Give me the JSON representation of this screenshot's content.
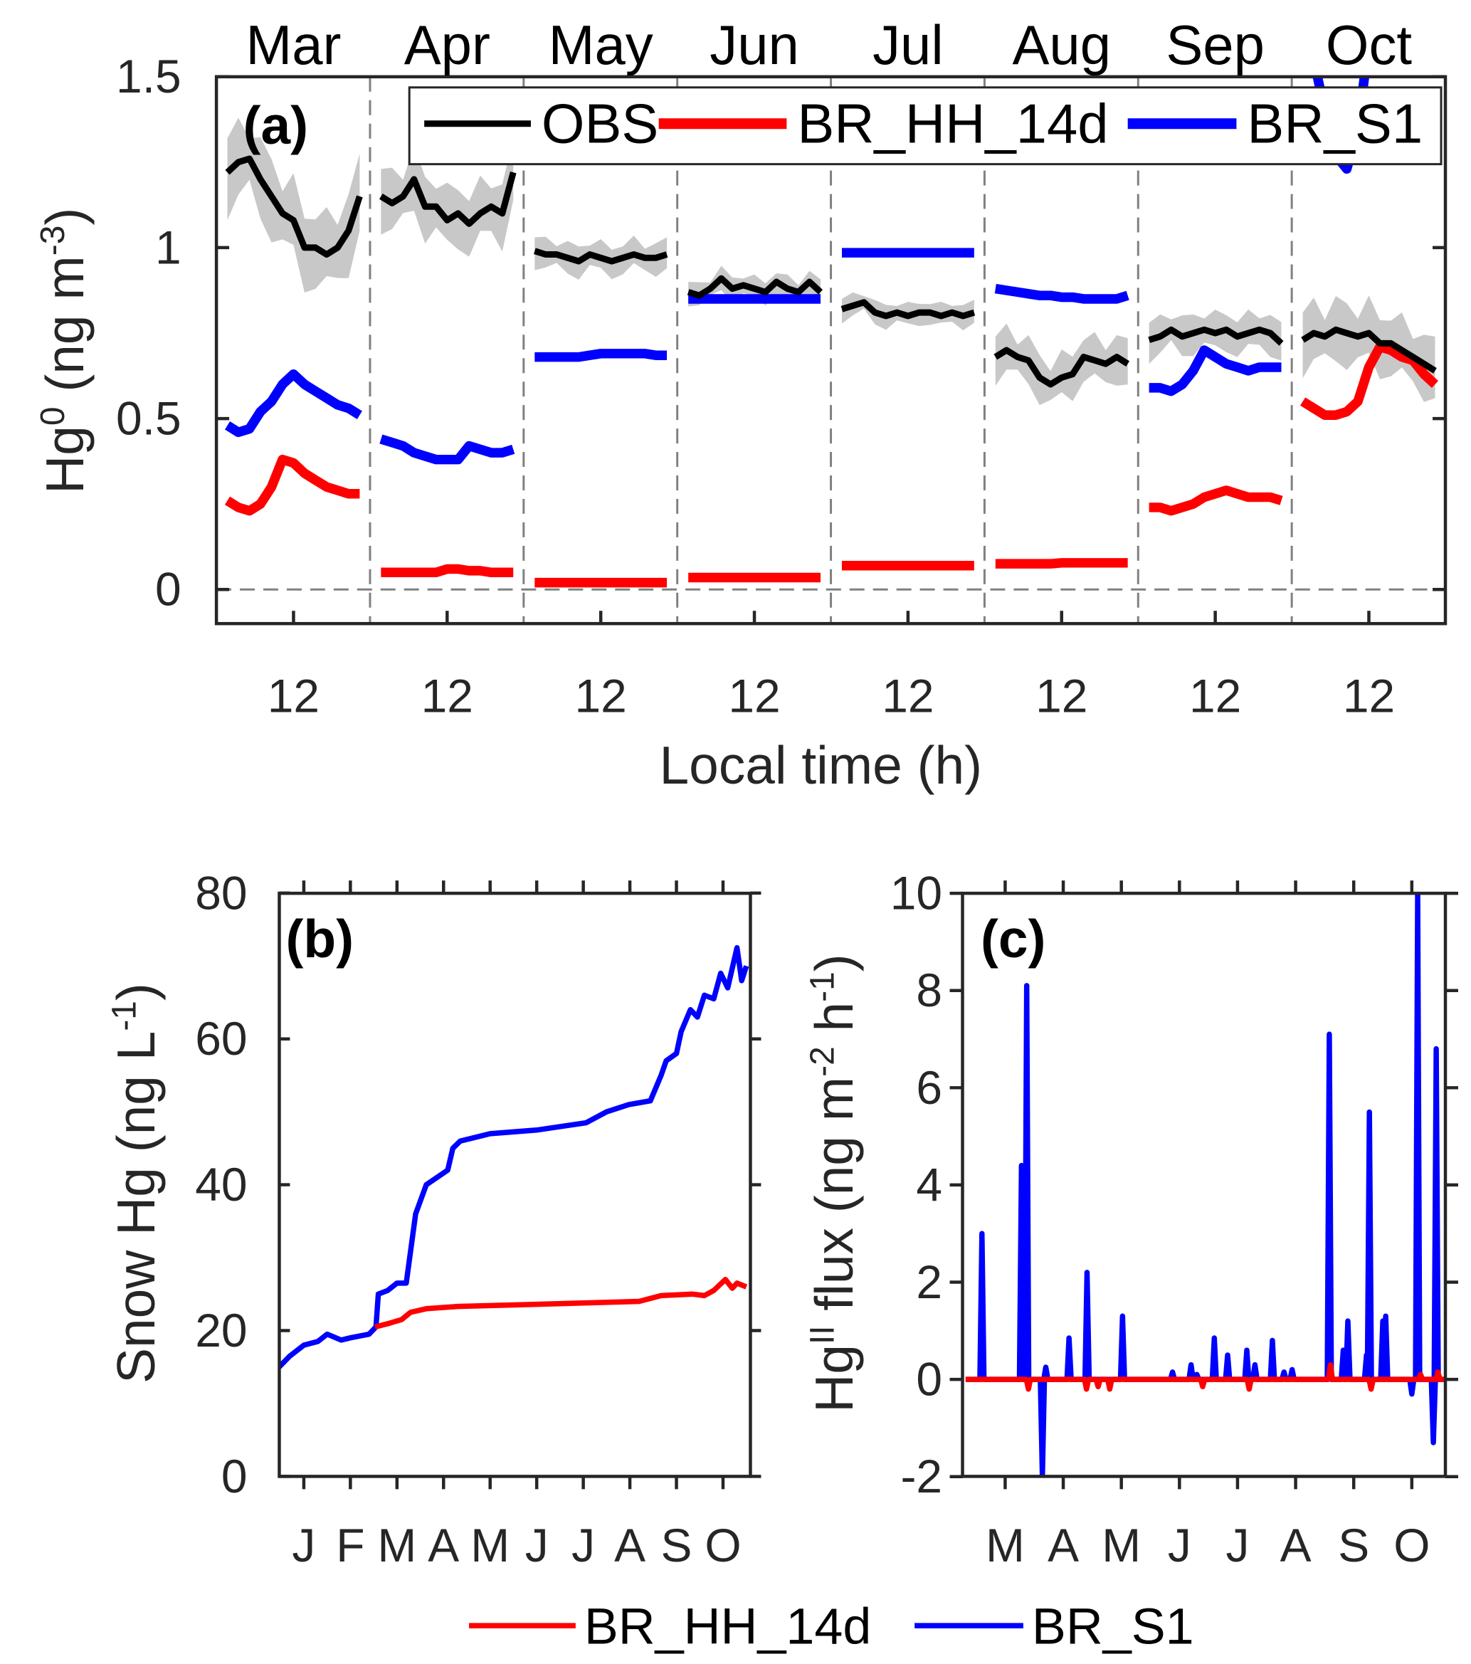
{
  "colors": {
    "OBS": "#000000",
    "BR_HH_14d": "#ff0000",
    "BR_S1": "#0000ff",
    "band": "#c8c8c8",
    "axis": "#262626"
  },
  "chart_data": [
    {
      "panel": "(a)",
      "type": "line",
      "month_labels": [
        "Mar",
        "Apr",
        "May",
        "Jun",
        "Jul",
        "Aug",
        "Sep",
        "Oct"
      ],
      "xtick_label": "12",
      "xlabel": "Local time (h)",
      "ylabel_parts": [
        {
          "t": "Hg"
        },
        {
          "t": "0",
          "sup": true
        },
        {
          "t": " (ng m"
        },
        {
          "t": "-3",
          "sup": true
        },
        {
          "t": ")"
        }
      ],
      "ylim": [
        -0.1,
        1.5
      ],
      "yticks": [
        "0",
        "0.5",
        "1",
        "1.5"
      ],
      "hours": [
        0,
        2,
        4,
        6,
        8,
        10,
        12,
        14,
        16,
        18,
        20,
        22,
        24
      ],
      "legend": [
        "OBS",
        "BR_HH_14d",
        "BR_S1"
      ],
      "legend_position": "top",
      "series": {
        "OBS": [
          [
            1.22,
            1.25,
            1.26,
            1.2,
            1.15,
            1.1,
            1.08,
            1.0,
            1.0,
            0.98,
            1.0,
            1.05,
            1.15
          ],
          [
            1.15,
            1.13,
            1.15,
            1.2,
            1.12,
            1.12,
            1.08,
            1.1,
            1.07,
            1.1,
            1.12,
            1.1,
            1.22
          ],
          [
            0.99,
            0.98,
            0.98,
            0.97,
            0.96,
            0.98,
            0.97,
            0.96,
            0.97,
            0.98,
            0.97,
            0.97,
            0.98
          ],
          [
            0.87,
            0.86,
            0.88,
            0.91,
            0.88,
            0.89,
            0.88,
            0.87,
            0.9,
            0.88,
            0.87,
            0.9,
            0.87
          ],
          [
            0.82,
            0.83,
            0.84,
            0.81,
            0.8,
            0.81,
            0.8,
            0.81,
            0.81,
            0.8,
            0.81,
            0.8,
            0.81
          ],
          [
            0.68,
            0.7,
            0.68,
            0.67,
            0.62,
            0.6,
            0.62,
            0.63,
            0.68,
            0.67,
            0.66,
            0.68,
            0.66
          ],
          [
            0.73,
            0.74,
            0.76,
            0.74,
            0.75,
            0.76,
            0.75,
            0.76,
            0.74,
            0.75,
            0.76,
            0.75,
            0.72
          ],
          [
            0.73,
            0.75,
            0.74,
            0.76,
            0.75,
            0.74,
            0.75,
            0.72,
            0.72,
            0.7,
            0.68,
            0.66,
            0.64
          ]
        ],
        "OBS_band_halfwidth": [
          0.1,
          0.08,
          0.04,
          0.03,
          0.03,
          0.06,
          0.05,
          0.08
        ],
        "BR_HH_14d": [
          [
            0.26,
            0.24,
            0.23,
            0.25,
            0.3,
            0.38,
            0.37,
            0.34,
            0.32,
            0.3,
            0.29,
            0.28,
            0.28
          ],
          [
            0.05,
            0.05,
            0.05,
            0.05,
            0.05,
            0.05,
            0.06,
            0.06,
            0.055,
            0.055,
            0.05,
            0.05,
            0.05
          ],
          [
            0.02,
            0.02,
            0.02,
            0.02,
            0.02,
            0.02,
            0.02,
            0.02,
            0.02,
            0.02,
            0.02,
            0.02,
            0.02
          ],
          [
            0.035,
            0.035,
            0.035,
            0.035,
            0.035,
            0.035,
            0.035,
            0.035,
            0.035,
            0.035,
            0.035,
            0.035,
            0.035
          ],
          [
            0.07,
            0.07,
            0.07,
            0.07,
            0.07,
            0.07,
            0.07,
            0.07,
            0.07,
            0.07,
            0.07,
            0.07,
            0.07
          ],
          [
            0.075,
            0.075,
            0.075,
            0.075,
            0.075,
            0.075,
            0.078,
            0.078,
            0.078,
            0.078,
            0.078,
            0.078,
            0.078
          ],
          [
            0.24,
            0.24,
            0.23,
            0.24,
            0.25,
            0.27,
            0.28,
            0.29,
            0.28,
            0.27,
            0.27,
            0.27,
            0.26
          ],
          [
            0.55,
            0.53,
            0.51,
            0.51,
            0.52,
            0.55,
            0.65,
            0.71,
            0.7,
            0.68,
            0.67,
            0.63,
            0.6
          ]
        ],
        "BR_S1": [
          [
            0.48,
            0.46,
            0.47,
            0.52,
            0.55,
            0.6,
            0.63,
            0.6,
            0.58,
            0.56,
            0.54,
            0.53,
            0.51
          ],
          [
            0.44,
            0.43,
            0.42,
            0.4,
            0.39,
            0.38,
            0.38,
            0.38,
            0.42,
            0.41,
            0.4,
            0.4,
            0.41
          ],
          [
            0.68,
            0.68,
            0.68,
            0.68,
            0.68,
            0.685,
            0.69,
            0.69,
            0.69,
            0.69,
            0.69,
            0.685,
            0.685
          ],
          [
            0.85,
            0.85,
            0.85,
            0.85,
            0.85,
            0.85,
            0.85,
            0.85,
            0.85,
            0.85,
            0.85,
            0.85,
            0.85
          ],
          [
            0.985,
            0.985,
            0.985,
            0.985,
            0.985,
            0.985,
            0.985,
            0.985,
            0.985,
            0.985,
            0.985,
            0.985,
            0.985
          ],
          [
            0.88,
            0.875,
            0.87,
            0.865,
            0.86,
            0.86,
            0.855,
            0.855,
            0.85,
            0.85,
            0.85,
            0.85,
            0.86
          ],
          [
            0.59,
            0.59,
            0.58,
            0.6,
            0.64,
            0.7,
            0.68,
            0.66,
            0.65,
            0.64,
            0.65,
            0.65,
            0.65
          ],
          [
            1.6,
            1.55,
            1.4,
            1.27,
            1.23,
            1.35,
            1.6,
            1.7,
            1.7,
            1.7,
            1.7,
            1.6,
            1.5
          ]
        ]
      }
    },
    {
      "panel": "(b)",
      "type": "line",
      "ylabel_parts": [
        {
          "t": "Snow Hg (ng L"
        },
        {
          "t": "-1",
          "sup": true
        },
        {
          "t": ")"
        }
      ],
      "ylim": [
        0,
        80
      ],
      "yticks": [
        "0",
        "20",
        "40",
        "60",
        "80"
      ],
      "xticks": [
        "J",
        "F",
        "M",
        "A",
        "M",
        "J",
        "J",
        "A",
        "S",
        "O"
      ],
      "xlim_month_index": [
        0.47,
        10.6
      ],
      "series": [
        {
          "name": "BR_S1",
          "points": [
            [
              0.47,
              15
            ],
            [
              0.7,
              16.5
            ],
            [
              1.0,
              18
            ],
            [
              1.3,
              18.5
            ],
            [
              1.5,
              19.5
            ],
            [
              1.8,
              18.7
            ],
            [
              2.0,
              19
            ],
            [
              2.4,
              19.5
            ],
            [
              2.55,
              20.5
            ],
            [
              2.6,
              25
            ],
            [
              2.8,
              25.5
            ],
            [
              3.0,
              26.5
            ],
            [
              3.2,
              26.5
            ],
            [
              3.4,
              36
            ],
            [
              3.63,
              40
            ],
            [
              4.09,
              42
            ],
            [
              4.2,
              45
            ],
            [
              4.36,
              46
            ],
            [
              5.0,
              47
            ],
            [
              6.0,
              47.5
            ],
            [
              7.06,
              48.5
            ],
            [
              7.5,
              50
            ],
            [
              7.98,
              51
            ],
            [
              8.44,
              51.5
            ],
            [
              8.67,
              55
            ],
            [
              8.78,
              57
            ],
            [
              9.0,
              58
            ],
            [
              9.1,
              61
            ],
            [
              9.3,
              64
            ],
            [
              9.45,
              63
            ],
            [
              9.6,
              66
            ],
            [
              9.8,
              65.5
            ],
            [
              9.95,
              69
            ],
            [
              10.1,
              67
            ],
            [
              10.3,
              72.5
            ],
            [
              10.4,
              68
            ],
            [
              10.5,
              70
            ]
          ]
        },
        {
          "name": "BR_HH_14d",
          "points": [
            [
              2.53,
              20.5
            ],
            [
              2.83,
              21
            ],
            [
              3.1,
              21.5
            ],
            [
              3.29,
              22.5
            ],
            [
              3.63,
              23
            ],
            [
              4.3,
              23.3
            ],
            [
              6.0,
              23.6
            ],
            [
              8.2,
              24
            ],
            [
              8.67,
              24.8
            ],
            [
              9.35,
              25
            ],
            [
              9.6,
              24.8
            ],
            [
              9.8,
              25.5
            ],
            [
              10.05,
              27
            ],
            [
              10.2,
              25.8
            ],
            [
              10.3,
              26.5
            ],
            [
              10.5,
              26
            ]
          ]
        }
      ]
    },
    {
      "panel": "(c)",
      "type": "line",
      "ylabel_parts": [
        {
          "t": "Hg"
        },
        {
          "t": "II",
          "sup": true
        },
        {
          "t": " flux (ng m"
        },
        {
          "t": "-2",
          "sup": true
        },
        {
          "t": " h"
        },
        {
          "t": "-1",
          "sup": true
        },
        {
          "t": ")"
        }
      ],
      "ylim": [
        -2,
        10
      ],
      "yticks": [
        "-2",
        "0",
        "2",
        "4",
        "6",
        "8",
        "10"
      ],
      "xticks": [
        "M",
        "A",
        "M",
        "J",
        "J",
        "A",
        "S",
        "O"
      ],
      "xlim_month_index": [
        2.27,
        10.58
      ],
      "series": [
        {
          "name": "BR_S1",
          "spikes": [
            [
              2.6,
              3.0
            ],
            [
              3.28,
              4.4
            ],
            [
              3.37,
              8.1
            ],
            [
              3.64,
              -2
            ],
            [
              3.7,
              0.25
            ],
            [
              4.1,
              0.85
            ],
            [
              4.41,
              2.2
            ],
            [
              5.02,
              1.3
            ],
            [
              5.88,
              0.15
            ],
            [
              6.2,
              0.3
            ],
            [
              6.3,
              0.1
            ],
            [
              6.6,
              0.85
            ],
            [
              6.83,
              0.5
            ],
            [
              7.16,
              0.6
            ],
            [
              7.3,
              0.3
            ],
            [
              7.6,
              0.8
            ],
            [
              7.8,
              0.15
            ],
            [
              7.94,
              0.2
            ],
            [
              8.58,
              7.1
            ],
            [
              8.82,
              0.6
            ],
            [
              8.9,
              1.2
            ],
            [
              9.22,
              0.5
            ],
            [
              9.27,
              5.5
            ],
            [
              9.5,
              1.2
            ],
            [
              9.55,
              1.3
            ],
            [
              10.0,
              -0.3
            ],
            [
              10.1,
              10
            ],
            [
              10.37,
              -1.3
            ],
            [
              10.42,
              6.8
            ]
          ]
        },
        {
          "name": "BR_HH_14d",
          "spikes": [
            [
              3.4,
              -0.2
            ],
            [
              4.4,
              -0.2
            ],
            [
              4.6,
              -0.15
            ],
            [
              4.8,
              -0.2
            ],
            [
              6.4,
              -0.15
            ],
            [
              7.2,
              -0.2
            ],
            [
              8.6,
              0.3
            ],
            [
              9.3,
              -0.2
            ],
            [
              10.15,
              0.1
            ],
            [
              10.45,
              0.15
            ]
          ]
        }
      ]
    }
  ],
  "bottom_legend": [
    "BR_HH_14d",
    "BR_S1"
  ]
}
